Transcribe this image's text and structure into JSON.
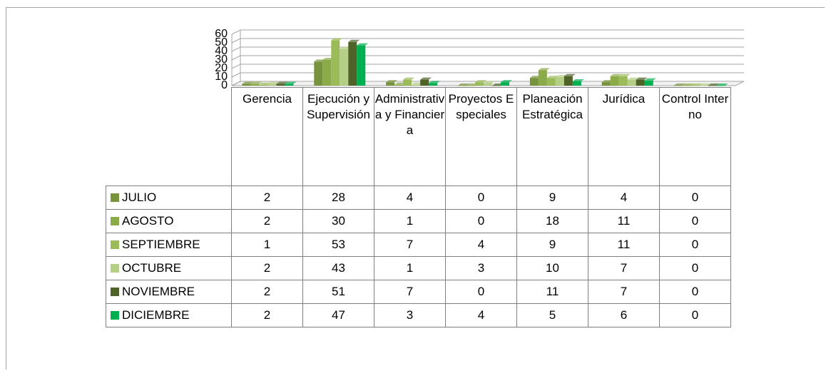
{
  "chart_data": {
    "type": "bar",
    "categories": [
      "Gerencia",
      "Ejecución y Supervisión",
      "Administrativa y Financiera",
      "Proyectos Especiales",
      "Planeación Estratégica",
      "Jurídica",
      "Control Interno"
    ],
    "series": [
      {
        "name": "JULIO",
        "color": "#77933c",
        "values": [
          2,
          28,
          4,
          0,
          9,
          4,
          0
        ]
      },
      {
        "name": "AGOSTO",
        "color": "#8aab47",
        "values": [
          2,
          30,
          1,
          0,
          18,
          11,
          0
        ]
      },
      {
        "name": "SEPTIEMBRE",
        "color": "#9bbb59",
        "values": [
          1,
          53,
          7,
          4,
          9,
          11,
          0
        ]
      },
      {
        "name": "OCTUBRE",
        "color": "#b5cf86",
        "values": [
          2,
          43,
          1,
          3,
          10,
          7,
          0
        ]
      },
      {
        "name": "NOVIEMBRE",
        "color": "#4f6228",
        "values": [
          2,
          51,
          7,
          0,
          11,
          7,
          0
        ]
      },
      {
        "name": "DICIEMBRE",
        "color": "#00b050",
        "values": [
          2,
          47,
          3,
          4,
          5,
          6,
          0
        ]
      }
    ],
    "ylim": [
      0,
      60
    ],
    "yticks": [
      0,
      10,
      20,
      30,
      40,
      50,
      60
    ],
    "grid": true
  }
}
